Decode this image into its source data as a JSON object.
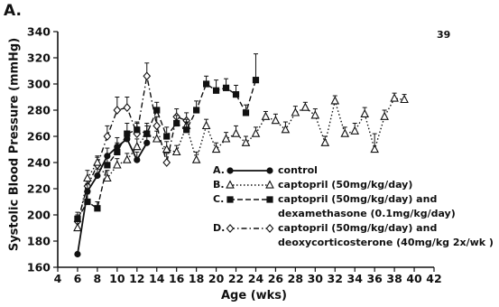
{
  "figure": {
    "panel_label": "A.",
    "page_number": "39"
  },
  "chart_data": {
    "type": "line",
    "xlabel": "Age (wks)",
    "ylabel": "Systolic Blood Pressure (mmHg)",
    "xlim": [
      4,
      42
    ],
    "ylim": [
      160,
      340
    ],
    "xticks": [
      4,
      6,
      8,
      10,
      12,
      14,
      16,
      18,
      20,
      22,
      24,
      26,
      28,
      30,
      32,
      34,
      36,
      38,
      40,
      42
    ],
    "yticks": [
      160,
      180,
      200,
      220,
      240,
      260,
      280,
      300,
      320,
      340
    ],
    "grid": false,
    "legend_position": "center-right",
    "series": [
      {
        "label": "A.",
        "name": "control",
        "style": "solid",
        "marker": "filled-circle",
        "color": "#111111",
        "x": [
          6,
          7,
          8,
          9,
          10,
          11,
          12,
          13
        ],
        "y": [
          170,
          218,
          230,
          245,
          252,
          258,
          242,
          255
        ],
        "err": [
          0,
          6,
          5,
          6,
          7,
          6,
          6,
          5
        ]
      },
      {
        "label": "B.",
        "name": "captopril (50mg/kg/day)",
        "style": "dotted",
        "marker": "open-triangle",
        "color": "#111111",
        "x": [
          6,
          7,
          8,
          9,
          10,
          11,
          12,
          13,
          14,
          15,
          16,
          17,
          18,
          19,
          20,
          21,
          22,
          23,
          24,
          25,
          26,
          27,
          28,
          29,
          30,
          31,
          32,
          33,
          34,
          35,
          36,
          37,
          38,
          39
        ],
        "y": [
          190,
          228,
          240,
          228,
          238,
          242,
          252,
          262,
          258,
          250,
          248,
          268,
          242,
          268,
          250,
          258,
          262,
          255,
          262,
          275,
          272,
          265,
          278,
          282,
          276,
          255,
          287,
          262,
          264,
          277,
          250,
          275,
          289,
          288
        ],
        "err": [
          5,
          6,
          5,
          6,
          5,
          5,
          6,
          6,
          6,
          6,
          5,
          5,
          6,
          5,
          5,
          5,
          6,
          5,
          5,
          4,
          5,
          6,
          5,
          4,
          5,
          5,
          4,
          5,
          6,
          5,
          12,
          5,
          4,
          4
        ]
      },
      {
        "label": "C.",
        "name": "captopril (50mg/kg/day) and",
        "name_line2": "dexamethasone (0.1mg/kg/day)",
        "style": "dashed",
        "marker": "filled-square",
        "color": "#111111",
        "x": [
          6,
          7,
          8,
          9,
          10,
          11,
          12,
          13,
          14,
          15,
          16,
          17,
          18,
          19,
          20,
          21,
          22,
          23,
          24
        ],
        "y": [
          197,
          210,
          205,
          238,
          248,
          262,
          265,
          262,
          280,
          260,
          270,
          265,
          280,
          300,
          295,
          297,
          292,
          278,
          303
        ],
        "err": [
          5,
          6,
          5,
          6,
          7,
          8,
          6,
          8,
          6,
          7,
          6,
          6,
          7,
          6,
          8,
          7,
          7,
          6,
          20
        ]
      },
      {
        "label": "D.",
        "name": "captopril (50mg/kg/day) and",
        "name_line2": "deoxycorticosterone (40mg/kg 2x/wk )",
        "style": "dash-dot",
        "marker": "open-diamond",
        "color": "#111111",
        "x": [
          6,
          7,
          8,
          9,
          10,
          11,
          12,
          13,
          14,
          15,
          16,
          17
        ],
        "y": [
          195,
          222,
          238,
          260,
          280,
          282,
          262,
          306,
          268,
          240,
          275,
          272
        ],
        "err": [
          5,
          6,
          6,
          8,
          10,
          8,
          8,
          10,
          7,
          7,
          6,
          6
        ]
      }
    ]
  }
}
